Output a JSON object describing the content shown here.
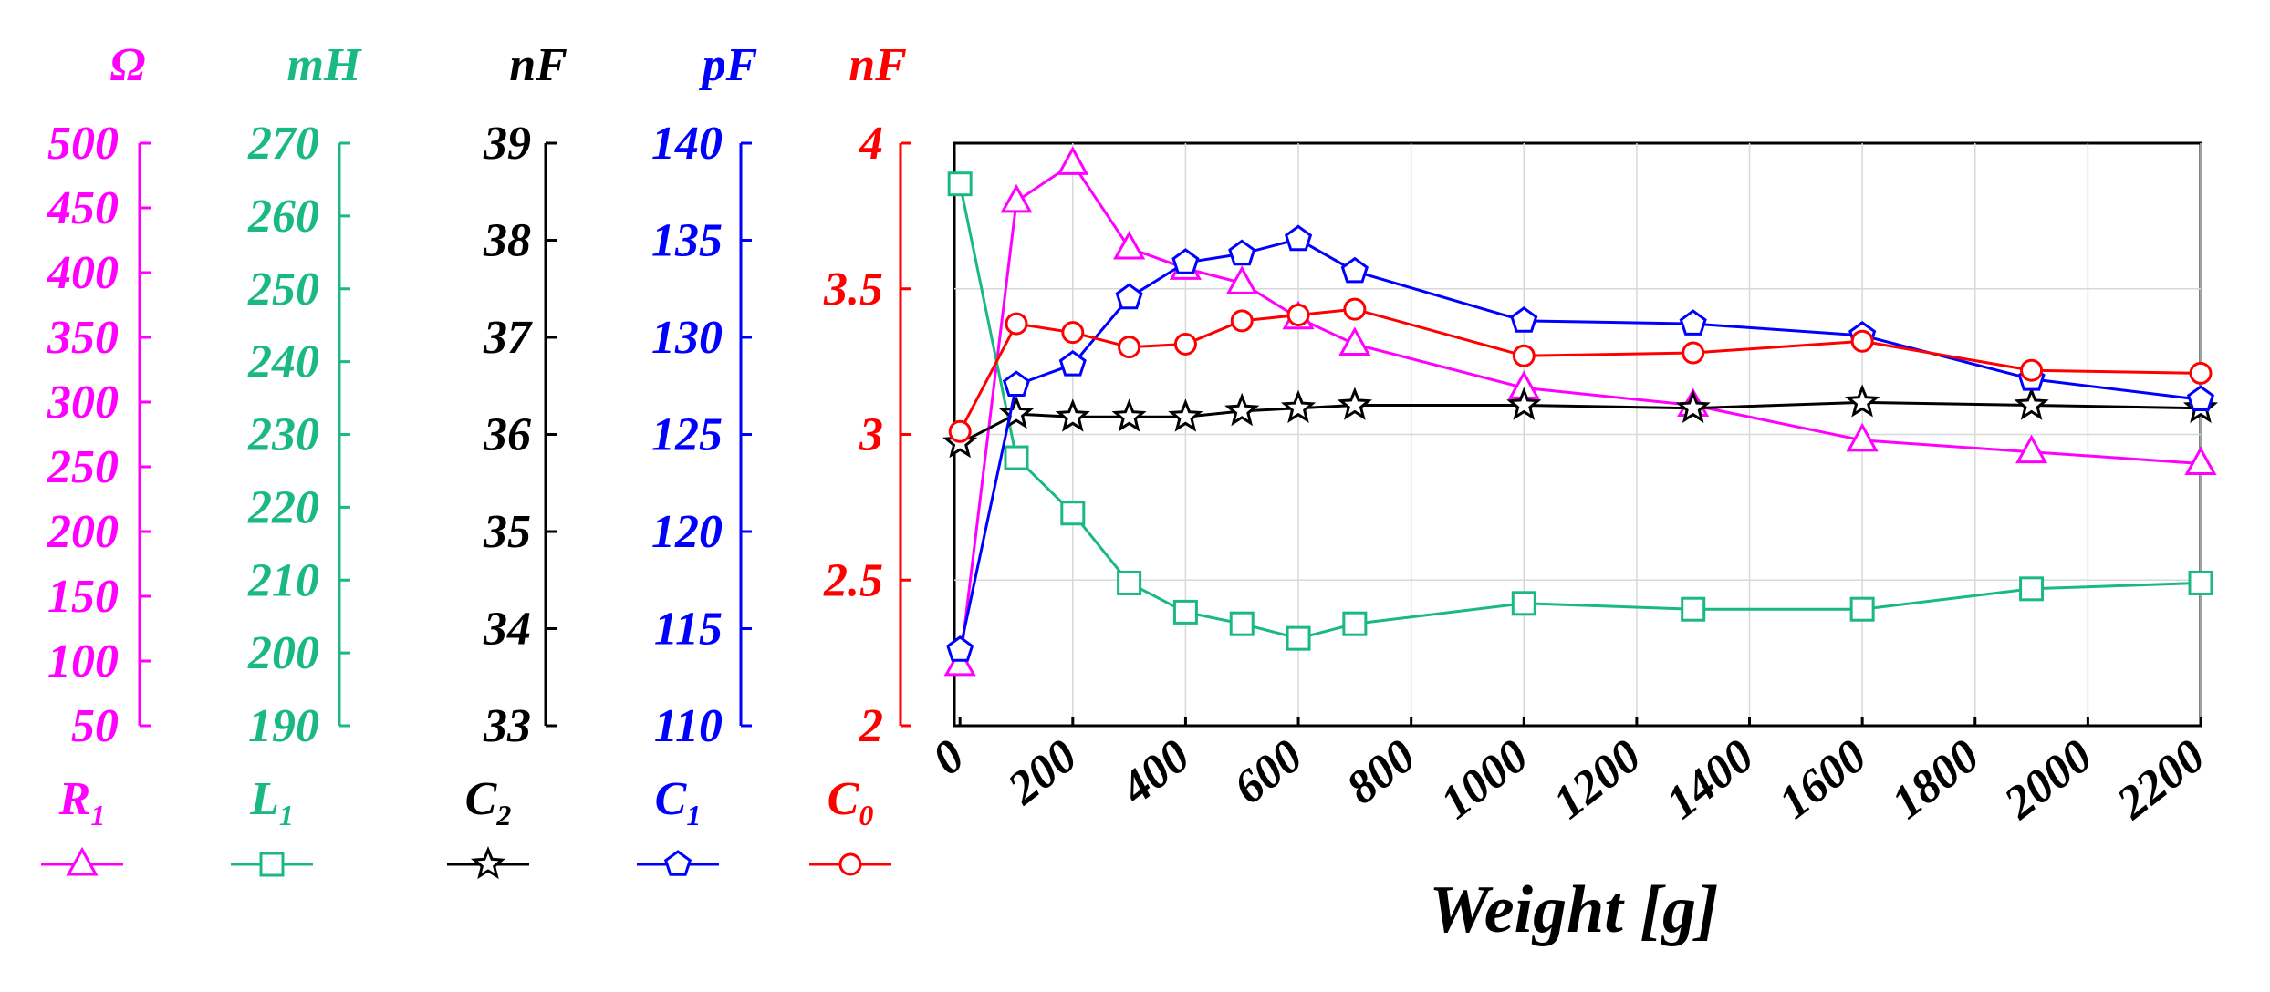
{
  "chart_data": {
    "type": "line",
    "xlabel": "Weight [g]",
    "x_ticks": [
      0,
      200,
      400,
      600,
      800,
      1000,
      1200,
      1400,
      1600,
      1800,
      2000,
      2200
    ],
    "xlim": [
      -10,
      2200
    ],
    "x": [
      0,
      100,
      200,
      300,
      400,
      500,
      600,
      700,
      1000,
      1300,
      1600,
      1900,
      2200
    ],
    "axes": [
      {
        "key": "R1",
        "unit": "Ω",
        "color": "#ff00ff",
        "ylim": [
          50,
          500
        ],
        "ticks": [
          50,
          100,
          150,
          200,
          250,
          300,
          350,
          400,
          450,
          500
        ]
      },
      {
        "key": "L1",
        "unit": "mH",
        "color": "#19b981",
        "ylim": [
          190,
          270
        ],
        "ticks": [
          190,
          200,
          210,
          220,
          230,
          240,
          250,
          260,
          270
        ]
      },
      {
        "key": "C2",
        "unit": "nF",
        "color": "#000000",
        "ylim": [
          33,
          39
        ],
        "ticks": [
          33,
          34,
          35,
          36,
          37,
          38,
          39
        ]
      },
      {
        "key": "C1",
        "unit": "pF",
        "color": "#0000ff",
        "ylim": [
          110,
          140
        ],
        "ticks": [
          110,
          115,
          120,
          125,
          130,
          135,
          140
        ]
      },
      {
        "key": "C0",
        "unit": "nF",
        "color": "#ff0000",
        "ylim": [
          2,
          4
        ],
        "ticks": [
          "2",
          "2.5",
          "3",
          "3.5",
          "4"
        ]
      }
    ],
    "series": [
      {
        "key": "R1",
        "name": "R",
        "sub": "1",
        "marker": "triangle",
        "color": "#ff00ff",
        "values": [
          2.21,
          3.8,
          3.93,
          3.64,
          3.57,
          3.52,
          3.4,
          3.31,
          3.16,
          3.1,
          2.98,
          2.94,
          2.9
        ]
      },
      {
        "key": "L1",
        "name": "L",
        "sub": "1",
        "marker": "square",
        "color": "#19b981",
        "values": [
          3.86,
          2.92,
          2.73,
          2.49,
          2.39,
          2.35,
          2.3,
          2.35,
          2.42,
          2.4,
          2.4,
          2.47,
          2.49
        ]
      },
      {
        "key": "C2",
        "name": "C",
        "sub": "2",
        "marker": "star",
        "color": "#000000",
        "values": [
          2.97,
          3.07,
          3.06,
          3.06,
          3.06,
          3.08,
          3.09,
          3.1,
          3.1,
          3.09,
          3.11,
          3.1,
          3.09
        ]
      },
      {
        "key": "C1",
        "name": "C",
        "sub": "1",
        "marker": "pentagon",
        "color": "#0000ff",
        "values": [
          2.26,
          3.17,
          3.24,
          3.47,
          3.59,
          3.62,
          3.67,
          3.56,
          3.39,
          3.38,
          3.34,
          3.19,
          3.12
        ]
      },
      {
        "key": "C0",
        "name": "C",
        "sub": "0",
        "marker": "circle",
        "color": "#ff0000",
        "values": [
          3.01,
          3.38,
          3.35,
          3.3,
          3.31,
          3.39,
          3.41,
          3.43,
          3.27,
          3.28,
          3.32,
          3.22,
          3.21
        ]
      }
    ]
  }
}
